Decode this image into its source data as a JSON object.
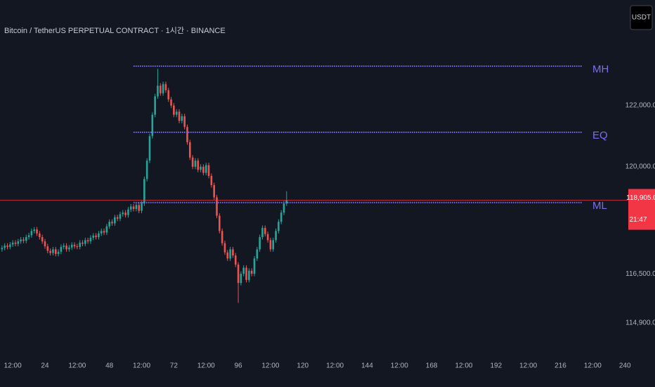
{
  "chart_data": {
    "type": "candlestick",
    "title": "Bitcoin / TetherUS PERPETUAL CONTRACT · 1시간 · BINANCE",
    "currency": "USDT",
    "up_color": "#26a69a",
    "down_color": "#ef5350",
    "xlim": [
      7.25,
      241
    ],
    "xticks": [
      {
        "value": 12,
        "label": "12:00"
      },
      24,
      {
        "value": 36,
        "label": "12:00"
      },
      48,
      {
        "value": 60,
        "label": "12:00"
      },
      72,
      {
        "value": 84,
        "label": "12:00"
      },
      96,
      {
        "value": 108,
        "label": "12:00"
      },
      120,
      {
        "value": 132,
        "label": "12:00"
      },
      144,
      {
        "value": 156,
        "label": "12:00"
      },
      168,
      {
        "value": 180,
        "label": "12:00"
      },
      192,
      {
        "value": 204,
        "label": "12:00"
      },
      216,
      {
        "value": 228,
        "label": "12:00"
      },
      240
    ],
    "xtick_labels_days": true,
    "ylim": [
      113950,
      125450
    ],
    "yticks": [
      {
        "value": 122000,
        "label": "122,000.0"
      },
      {
        "value": 120000,
        "label": "120,000.0"
      },
      {
        "value": 116500,
        "label": "116,500.0"
      },
      {
        "value": 114900,
        "label": "114,900.0"
      }
    ],
    "x": [
      8,
      9,
      10,
      11,
      12,
      13,
      14,
      15,
      16,
      17,
      18,
      19,
      20,
      21,
      22,
      23,
      24,
      25,
      26,
      27,
      28,
      29,
      30,
      31,
      32,
      33,
      34,
      35,
      36,
      37,
      38,
      39,
      40,
      41,
      42,
      43,
      44,
      45,
      46,
      47,
      48,
      49,
      50,
      51,
      52,
      53,
      54,
      55,
      56,
      57,
      58,
      59,
      60,
      61,
      62,
      63,
      64,
      65,
      66,
      67,
      68,
      69,
      70,
      71,
      72,
      73,
      74,
      75,
      76,
      77,
      78,
      79,
      80,
      81,
      82,
      83,
      84,
      85,
      86,
      87,
      88,
      89,
      90,
      91,
      92,
      93,
      94,
      95,
      96,
      97,
      98,
      99,
      100,
      101,
      102,
      103,
      104,
      105,
      106,
      107,
      108,
      109,
      110,
      111,
      112,
      113,
      114
    ],
    "open": [
      117300,
      117350,
      117420,
      117380,
      117460,
      117520,
      117480,
      117560,
      117620,
      117580,
      117700,
      117760,
      117900,
      117950,
      117820,
      117700,
      117560,
      117400,
      117250,
      117180,
      117300,
      117150,
      117220,
      117380,
      117420,
      117300,
      117360,
      117450,
      117400,
      117380,
      117520,
      117480,
      117600,
      117560,
      117680,
      117750,
      117700,
      117820,
      117900,
      117850,
      118050,
      118200,
      118150,
      118350,
      118300,
      118450,
      118500,
      118420,
      118600,
      118700,
      118620,
      118750,
      118560,
      118800,
      119600,
      120200,
      121000,
      121700,
      122300,
      122650,
      122400,
      122700,
      122500,
      122200,
      122000,
      121700,
      121800,
      121500,
      121650,
      121300,
      120800,
      120300,
      120000,
      120200,
      119900,
      120000,
      119800,
      120050,
      119700,
      119400,
      119000,
      118400,
      117900,
      117500,
      117200,
      117000,
      117300,
      117100,
      116800,
      116200,
      116500,
      116700,
      116300,
      116600,
      116500,
      117000,
      117300,
      117700,
      118000,
      117800,
      117600,
      117300,
      117600,
      117900,
      118200,
      118500,
      118800
    ],
    "high": [
      117430,
      117500,
      117500,
      117540,
      117600,
      117600,
      117640,
      117700,
      117700,
      117780,
      117840,
      117980,
      118030,
      118030,
      117900,
      117780,
      117640,
      117480,
      117330,
      117380,
      117380,
      117300,
      117460,
      117500,
      117500,
      117440,
      117530,
      117530,
      117480,
      117600,
      117600,
      117680,
      117680,
      117760,
      117830,
      117830,
      117900,
      117980,
      117980,
      118130,
      118280,
      118280,
      118430,
      118430,
      118530,
      118580,
      118580,
      118680,
      118780,
      118780,
      118830,
      118830,
      118880,
      119680,
      120280,
      121080,
      121780,
      122380,
      123200,
      122730,
      122780,
      122780,
      122580,
      122280,
      122080,
      121880,
      121880,
      121730,
      121730,
      121380,
      120880,
      120380,
      120280,
      120280,
      120080,
      120080,
      120130,
      120130,
      119780,
      119480,
      119080,
      118480,
      117980,
      117580,
      117280,
      117380,
      117380,
      117180,
      116880,
      116580,
      116780,
      116780,
      116680,
      116680,
      117080,
      117380,
      117780,
      118080,
      118080,
      117880,
      117680,
      117680,
      117980,
      118280,
      118580,
      118880,
      119200
    ],
    "low": [
      117220,
      117270,
      117300,
      117300,
      117380,
      117400,
      117400,
      117480,
      117500,
      117500,
      117620,
      117680,
      117820,
      117740,
      117620,
      117480,
      117320,
      117170,
      117100,
      117100,
      117070,
      117070,
      117140,
      117300,
      117220,
      117220,
      117280,
      117320,
      117300,
      117300,
      117400,
      117400,
      117480,
      117480,
      117600,
      117620,
      117620,
      117740,
      117770,
      117770,
      117970,
      118070,
      118070,
      118220,
      118220,
      118370,
      118340,
      118340,
      118520,
      118540,
      118540,
      118480,
      118480,
      118720,
      119520,
      120120,
      120920,
      121620,
      122220,
      122320,
      122320,
      122420,
      122120,
      121920,
      121620,
      121620,
      121420,
      121420,
      121220,
      120720,
      120220,
      119920,
      119920,
      119820,
      119820,
      119720,
      119720,
      119620,
      119320,
      118920,
      118320,
      117820,
      117420,
      117120,
      116920,
      116920,
      117020,
      116720,
      115550,
      116120,
      116420,
      116220,
      116220,
      116420,
      116420,
      116920,
      117220,
      117620,
      117720,
      117520,
      117220,
      117220,
      117520,
      117820,
      118120,
      118420,
      118720
    ],
    "close": [
      117350,
      117420,
      117380,
      117460,
      117520,
      117480,
      117560,
      117620,
      117580,
      117700,
      117760,
      117900,
      117950,
      117820,
      117700,
      117560,
      117400,
      117250,
      117180,
      117300,
      117150,
      117220,
      117380,
      117420,
      117300,
      117360,
      117450,
      117400,
      117380,
      117520,
      117480,
      117600,
      117560,
      117680,
      117750,
      117700,
      117820,
      117900,
      117850,
      118050,
      118200,
      118150,
      118350,
      118300,
      118450,
      118500,
      118420,
      118600,
      118700,
      118620,
      118750,
      118560,
      118800,
      119600,
      120200,
      121000,
      121700,
      122300,
      122650,
      122400,
      122700,
      122500,
      122200,
      122000,
      121700,
      121800,
      121500,
      121650,
      121300,
      120800,
      120300,
      120000,
      120200,
      119900,
      120000,
      119800,
      120050,
      119700,
      119400,
      119000,
      118400,
      117900,
      117500,
      117200,
      117000,
      117300,
      117100,
      116800,
      116200,
      116500,
      116700,
      116300,
      116600,
      116500,
      117000,
      117300,
      117700,
      118000,
      117800,
      117600,
      117300,
      117600,
      117900,
      118200,
      118500,
      118800,
      118905
    ],
    "levels": [
      {
        "name": "MH",
        "value": 123287,
        "x": [
          57,
          224
        ]
      },
      {
        "name": "EQ",
        "value": 121126,
        "x": [
          57,
          224
        ]
      },
      {
        "name": "ML",
        "value": 118828,
        "x": [
          57,
          224
        ]
      }
    ],
    "level_color": "#7e6cf5",
    "last_price": {
      "value": 118905,
      "label": "118,905.0",
      "countdown": "21:47",
      "color": "#f23645"
    }
  }
}
